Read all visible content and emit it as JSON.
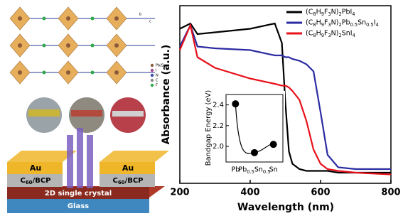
{
  "chart_data": {
    "type": "line",
    "x_label": "Wavelength (nm)",
    "y_label": "Absorbance (a.u.)",
    "x": [
      200,
      230,
      250,
      300,
      400,
      470,
      490,
      500,
      510,
      520,
      540,
      560,
      580,
      600,
      620,
      650,
      700,
      800
    ],
    "series": [
      {
        "name": "(C8H9F3N)2PbI4",
        "color": "#000000",
        "values": [
          0.87,
          0.9,
          0.84,
          0.85,
          0.87,
          0.9,
          0.79,
          0.45,
          0.18,
          0.11,
          0.08,
          0.07,
          0.07,
          0.07,
          0.07,
          0.06,
          0.06,
          0.06
        ]
      },
      {
        "name": "(C8H9F3N)2Pb0.5Sn0.5I4",
        "color": "#2b2ba3",
        "values": [
          0.77,
          0.89,
          0.77,
          0.76,
          0.75,
          0.72,
          0.72,
          0.71,
          0.71,
          0.7,
          0.69,
          0.67,
          0.63,
          0.4,
          0.16,
          0.09,
          0.08,
          0.08
        ]
      },
      {
        "name": "(C8H9F3N)2SnI4",
        "color": "#e8101a",
        "values": [
          0.75,
          0.89,
          0.71,
          0.65,
          0.59,
          0.56,
          0.55,
          0.55,
          0.54,
          0.52,
          0.47,
          0.35,
          0.19,
          0.11,
          0.08,
          0.07,
          0.06,
          0.05
        ]
      }
    ],
    "xlim": [
      200,
      800
    ],
    "xticks": [
      200,
      400,
      600,
      800
    ],
    "ylim": [
      0,
      1
    ],
    "inset": {
      "type": "scatter",
      "y_label": "Bandgap Energy (eV)",
      "categories": [
        "Pb",
        "Pb0.5Sn0.5",
        "Sn"
      ],
      "values": [
        2.41,
        1.94,
        2.02
      ],
      "color": "#000000",
      "ylim": [
        1.85,
        2.5
      ],
      "yticks": [
        {
          "value": 2,
          "label": "2.0"
        },
        2.2,
        2.4
      ]
    }
  },
  "figure_labels": {
    "au_left": "Au",
    "au_right": "Au",
    "c60_left": "C60/BCP",
    "c60_right": "C60/BCP",
    "crystal": "2D single crystal",
    "glass": "Glass",
    "atoms": [
      "Pb/Sn",
      "I",
      "N",
      "C",
      "F"
    ],
    "axes": [
      "b",
      "c"
    ]
  }
}
